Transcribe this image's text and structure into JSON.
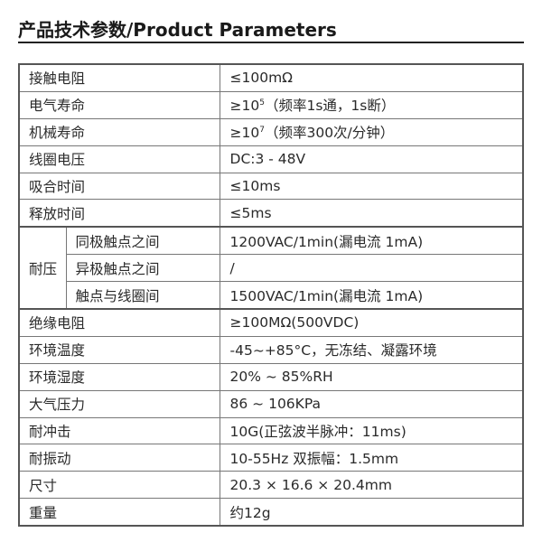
{
  "title": "产品技术参数/Product Parameters",
  "rows": [
    {
      "label": "接触电阻",
      "value": "≤100mΩ"
    },
    {
      "label": "电气寿命",
      "value_prefix": "≥10",
      "value_sup": "5",
      "value_suffix": "（频率1s通，1s断）"
    },
    {
      "label": "机械寿命",
      "value_prefix": "≥10",
      "value_sup": "7",
      "value_suffix": "（频率300次/分钟）"
    },
    {
      "label": "线圈电压",
      "value": "DC:3 - 48V"
    },
    {
      "label": "吸合时间",
      "value": "≤10ms"
    },
    {
      "label": "释放时间",
      "value": "≤5ms"
    }
  ],
  "dielectric": {
    "label": "耐压",
    "items": [
      {
        "label": "同极触点之间",
        "value": "1200VAC/1min(漏电流 1mA)"
      },
      {
        "label": "异极触点之间",
        "value": "/"
      },
      {
        "label": "触点与线圈间",
        "value": "1500VAC/1min(漏电流 1mA)"
      }
    ]
  },
  "rows2": [
    {
      "label": "绝缘电阻",
      "value": "≥100MΩ(500VDC)"
    },
    {
      "label": "环境温度",
      "value": "-45~+85°C，无冻结、凝露环境"
    },
    {
      "label": "环境湿度",
      "value": "20% ~ 85%RH"
    },
    {
      "label": "大气压力",
      "value": "86 ~ 106KPa"
    },
    {
      "label": "耐冲击",
      "value": "10G(正弦波半脉冲：11ms)"
    },
    {
      "label": "耐振动",
      "value": "10-55Hz 双振幅：1.5mm"
    },
    {
      "label": "尺寸",
      "value": "20.3 × 16.6 × 20.4mm"
    },
    {
      "label": "重量",
      "value": "约12g"
    }
  ]
}
